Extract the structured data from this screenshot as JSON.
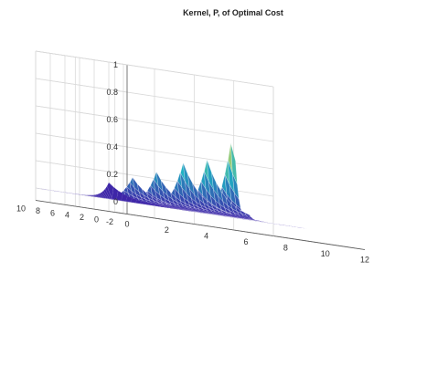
{
  "chart_data": {
    "type": "surface",
    "title": "Kernel, P, of Optimal Cost",
    "xlabel": "",
    "ylabel": "",
    "zlabel": "",
    "xlim": [
      0,
      12
    ],
    "ylim": [
      -2.5,
      10
    ],
    "zlim": [
      0,
      1
    ],
    "x_ticks": [
      "0",
      "2",
      "4",
      "6",
      "8",
      "10",
      "12"
    ],
    "y_ticks": [
      "-2",
      "0",
      "2",
      "4",
      "6",
      "8",
      "10"
    ],
    "z_ticks": [
      "0",
      "0.2",
      "0.4",
      "0.6",
      "0.8",
      "1"
    ],
    "surface_extent": {
      "x": [
        0,
        10
      ],
      "y": [
        0,
        10
      ]
    },
    "peaks": [
      {
        "x": 0.0,
        "y": 0.0,
        "z": 0.12
      },
      {
        "x": 2.0,
        "y": 2.0,
        "z": 0.2
      },
      {
        "x": 4.0,
        "y": 4.0,
        "z": 0.3
      },
      {
        "x": 6.0,
        "y": 6.0,
        "z": 0.36
      },
      {
        "x": 8.0,
        "y": 8.0,
        "z": 0.45
      },
      {
        "x": 9.9,
        "y": 9.9,
        "z": 0.62
      }
    ],
    "colormap": "parula",
    "colors": {
      "low": "#3e26a8",
      "mid": "#1fb3c4",
      "high": "#f9e03a"
    },
    "grid": true
  }
}
